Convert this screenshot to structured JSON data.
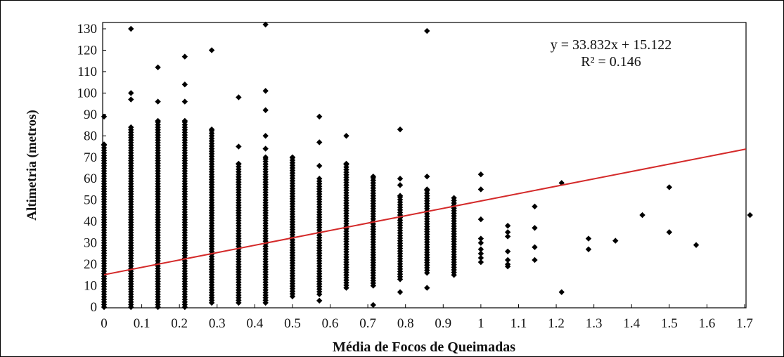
{
  "chart_data": {
    "type": "scatter",
    "title": "",
    "xlabel": "Média de Focos de Queimadas",
    "ylabel": "Altimetria  (metros)",
    "xlim": [
      0,
      1.7
    ],
    "ylim": [
      0,
      130
    ],
    "x_ticks": [
      "0",
      "0.1",
      "0.2",
      "0.3",
      "0.4",
      "0.5",
      "0.6",
      "0.7",
      "0.8",
      "0.9",
      "1",
      "1.1",
      "1.2",
      "1.3",
      "1.4",
      "1.5",
      "1.6",
      "1.7"
    ],
    "y_ticks": [
      "0",
      "10",
      "20",
      "30",
      "40",
      "50",
      "60",
      "70",
      "80",
      "90",
      "100",
      "110",
      "120",
      "130"
    ],
    "grid": false,
    "marker": "diamond",
    "marker_color": "#000000",
    "trendline": {
      "slope": 33.832,
      "intercept": 15.122,
      "color": "#d42a2a",
      "equation_label": "y = 33.832x + 15.122",
      "r2_label": "R² = 0.146"
    },
    "columns": [
      {
        "x": 0,
        "dense_range": [
          0,
          76
        ],
        "extra": [
          89
        ]
      },
      {
        "x": 0.0714,
        "dense_range": [
          0,
          84
        ],
        "extra": [
          97,
          100,
          130
        ]
      },
      {
        "x": 0.1429,
        "dense_range": [
          0,
          87
        ],
        "extra": [
          96,
          112
        ]
      },
      {
        "x": 0.2143,
        "dense_range": [
          0,
          87
        ],
        "extra": [
          96,
          104,
          117
        ]
      },
      {
        "x": 0.2857,
        "dense_range": [
          2,
          83
        ],
        "extra": [
          120
        ]
      },
      {
        "x": 0.3571,
        "dense_range": [
          2,
          67
        ],
        "extra": [
          75,
          98
        ]
      },
      {
        "x": 0.4286,
        "dense_range": [
          2,
          70
        ],
        "extra": [
          74,
          80,
          92,
          101,
          132
        ]
      },
      {
        "x": 0.5,
        "dense_range": [
          5,
          70
        ],
        "extra": []
      },
      {
        "x": 0.5714,
        "dense_range": [
          6,
          60
        ],
        "extra": [
          3,
          66,
          77,
          89
        ]
      },
      {
        "x": 0.6429,
        "dense_range": [
          9,
          67
        ],
        "extra": [
          80
        ]
      },
      {
        "x": 0.7143,
        "dense_range": [
          10,
          61
        ],
        "extra": [
          1
        ]
      },
      {
        "x": 0.7857,
        "dense_range": [
          13,
          52
        ],
        "extra": [
          7,
          57,
          60,
          83
        ]
      },
      {
        "x": 0.8571,
        "dense_range": [
          16,
          55
        ],
        "extra": [
          9,
          61,
          129
        ]
      },
      {
        "x": 0.9286,
        "dense_range": [
          15,
          51
        ],
        "extra": []
      }
    ],
    "sparse_points": [
      {
        "x": 1.0,
        "y": 62
      },
      {
        "x": 1.0,
        "y": 55
      },
      {
        "x": 1.0,
        "y": 41
      },
      {
        "x": 1.0,
        "y": 32
      },
      {
        "x": 1.0,
        "y": 30
      },
      {
        "x": 1.0,
        "y": 27
      },
      {
        "x": 1.0,
        "y": 25
      },
      {
        "x": 1.0,
        "y": 23
      },
      {
        "x": 1.0,
        "y": 21
      },
      {
        "x": 1.0714,
        "y": 38
      },
      {
        "x": 1.0714,
        "y": 35
      },
      {
        "x": 1.0714,
        "y": 33
      },
      {
        "x": 1.0714,
        "y": 26
      },
      {
        "x": 1.0714,
        "y": 22
      },
      {
        "x": 1.0714,
        "y": 20
      },
      {
        "x": 1.0714,
        "y": 19
      },
      {
        "x": 1.1429,
        "y": 47
      },
      {
        "x": 1.1429,
        "y": 37
      },
      {
        "x": 1.1429,
        "y": 28
      },
      {
        "x": 1.1429,
        "y": 22
      },
      {
        "x": 1.2143,
        "y": 58
      },
      {
        "x": 1.2143,
        "y": 7
      },
      {
        "x": 1.2857,
        "y": 32
      },
      {
        "x": 1.2857,
        "y": 27
      },
      {
        "x": 1.3571,
        "y": 31
      },
      {
        "x": 1.4286,
        "y": 43
      },
      {
        "x": 1.5,
        "y": 56
      },
      {
        "x": 1.5,
        "y": 35
      },
      {
        "x": 1.5714,
        "y": 29
      },
      {
        "x": 1.7143,
        "y": 43
      }
    ]
  }
}
